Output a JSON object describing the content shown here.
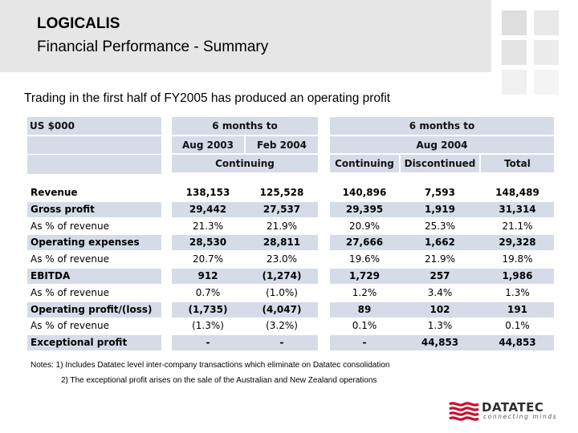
{
  "header": {
    "company": "LOGICALIS",
    "subtitle": "Financial Performance - Summary"
  },
  "headline": "Trading in the first half of FY2005 has produced an operating profit",
  "table": {
    "currency_label": "US $000",
    "group1_title": "6 months to",
    "group1_col1": "Aug 2003",
    "group1_col2": "Feb 2004",
    "group1_sub": "Continuing",
    "group2_title": "6 months to",
    "group2_period": "Aug 2004",
    "group2_col1": "Continuing",
    "group2_col2": "Discontinued",
    "group2_col3": "Total",
    "rows": [
      {
        "label": "Revenue",
        "values": [
          "138,153",
          "125,528",
          "140,896",
          "7,593",
          "148,489"
        ]
      },
      {
        "label": "Gross profit",
        "values": [
          "29,442",
          "27,537",
          "29,395",
          "1,919",
          "31,314"
        ]
      },
      {
        "label": "As % of revenue",
        "values": [
          "21.3%",
          "21.9%",
          "20.9%",
          "25.3%",
          "21.1%"
        ]
      },
      {
        "label": "Operating expenses",
        "values": [
          "28,530",
          "28,811",
          "27,666",
          "1,662",
          "29,328"
        ]
      },
      {
        "label": "As % of revenue",
        "values": [
          "20.7%",
          "23.0%",
          "19.6%",
          "21.9%",
          "19.8%"
        ]
      },
      {
        "label": "EBITDA",
        "values": [
          "912",
          "(1,274)",
          "1,729",
          "257",
          "1,986"
        ]
      },
      {
        "label": "As % of revenue",
        "values": [
          "0.7%",
          "(1.0%)",
          "1.2%",
          "3.4%",
          "1.3%"
        ]
      },
      {
        "label": "Operating profit/(loss)",
        "values": [
          "(1,735)",
          "(4,047)",
          "89",
          "102",
          "191"
        ]
      },
      {
        "label": "As % of revenue",
        "values": [
          "(1.3%)",
          "(3.2%)",
          "0.1%",
          "1.3%",
          "0.1%"
        ]
      },
      {
        "label": "Exceptional profit",
        "values": [
          "-",
          "-",
          "-",
          "44,853",
          "44,853"
        ]
      }
    ]
  },
  "notes": {
    "line1": "Notes: 1) Includes Datatec level inter-company transactions which eliminate on Datatec consolidation",
    "line2": "2) The exceptional profit arises on the sale of the Australian and New Zealand operations"
  },
  "logo": {
    "wordmark": "DATATEC",
    "tagline": "connecting minds"
  },
  "colors": {
    "header_bg": "#e6e6e6",
    "table_shade": "#d5dce8",
    "logo_red": "#c8102e"
  }
}
